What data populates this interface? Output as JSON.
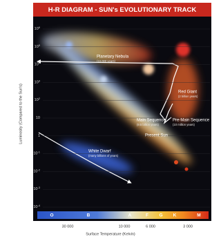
{
  "header": {
    "title": "H-R DIAGRAM - SUN's EVOLUTIONARY TRACK"
  },
  "y_axis": {
    "title": "Luminosity (Compared to the Sun's)",
    "ticks": [
      {
        "base": "10",
        "exp": "6"
      },
      {
        "base": "10",
        "exp": "5"
      },
      {
        "base": "10",
        "exp": "4"
      },
      {
        "base": "10",
        "exp": "3"
      },
      {
        "base": "10",
        "exp": "2"
      },
      {
        "base": "10"
      },
      {
        "base": "1"
      },
      {
        "base": "10",
        "exp": "-1"
      },
      {
        "base": "10",
        "exp": "-2"
      },
      {
        "base": "10",
        "exp": "-3"
      },
      {
        "base": "10",
        "exp": "-4"
      }
    ]
  },
  "x_axis": {
    "title": "Surface Temperature (Kelvin)",
    "ticks": [
      "30 000",
      "10 000",
      "6 000",
      "3 000"
    ],
    "classes": [
      "O",
      "B",
      "A",
      "F",
      "G",
      "K",
      "M"
    ]
  },
  "annotations": [
    {
      "label": "Planetary Nebula",
      "note": "(10,000 years)"
    },
    {
      "label": "Red Giant",
      "note": "(2 billion years)"
    },
    {
      "label": "Main Sequence",
      "note": "(9.5 billion years)"
    },
    {
      "label": "Pre-Main Sequence",
      "note": "(10 million years)"
    },
    {
      "label": "Present Sun"
    },
    {
      "label": "White Dwarf",
      "note": "(many billions of years)"
    }
  ]
}
